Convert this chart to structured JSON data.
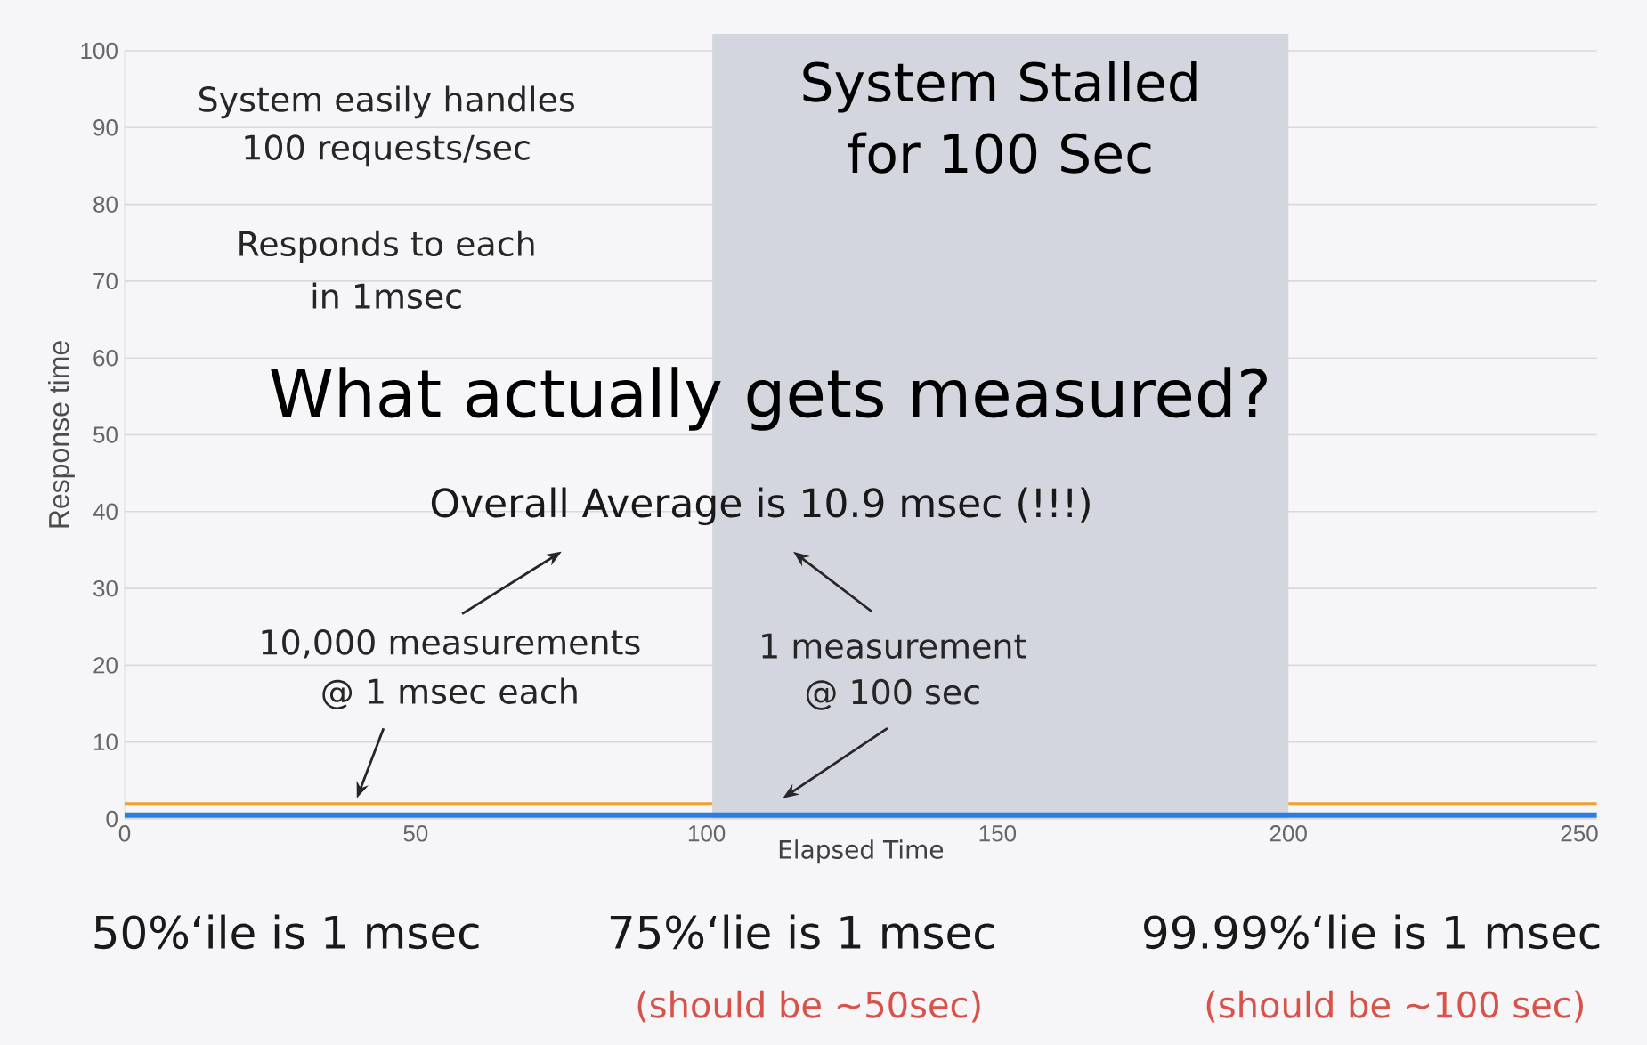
{
  "chart_data": {
    "type": "line",
    "title": "What actually gets measured?",
    "xlabel": "Elapsed Time",
    "ylabel": "Response time",
    "series": [
      {
        "color": "#2b7de0",
        "x": [
          0,
          253
        ],
        "values": [
          0.5,
          0.5
        ]
      },
      {
        "color": "#f0a030",
        "x": [
          0,
          101,
          150,
          200,
          253
        ],
        "values": [
          2,
          2,
          null,
          2,
          2
        ]
      }
    ],
    "xlim": [
      0,
      253
    ],
    "ylim": [
      0,
      100
    ],
    "xticks": [
      0,
      50,
      100,
      150,
      200,
      250
    ],
    "yticks": [
      0,
      10,
      20,
      30,
      40,
      50,
      60,
      70,
      80,
      90,
      100
    ],
    "grid": "y",
    "bands": [
      {
        "axis": "x",
        "from": 101,
        "to": 200,
        "label": "System Stalled for 100 Sec",
        "color": "#d3d6df"
      }
    ],
    "annotations": [
      "System easily handles",
      "100 requests/sec",
      "Responds to each",
      "in 1msec",
      "Overall Average is 10.9 msec (!!!)",
      "10,000 measurements",
      "@ 1 msec each",
      "1 measurement",
      "@ 100 sec",
      "50%‘ile is 1 msec",
      "75%‘lie is 1 msec",
      "99.99%‘lie is 1 msec",
      "(should be ~50sec)",
      "(should be ~100 sec)"
    ]
  }
}
